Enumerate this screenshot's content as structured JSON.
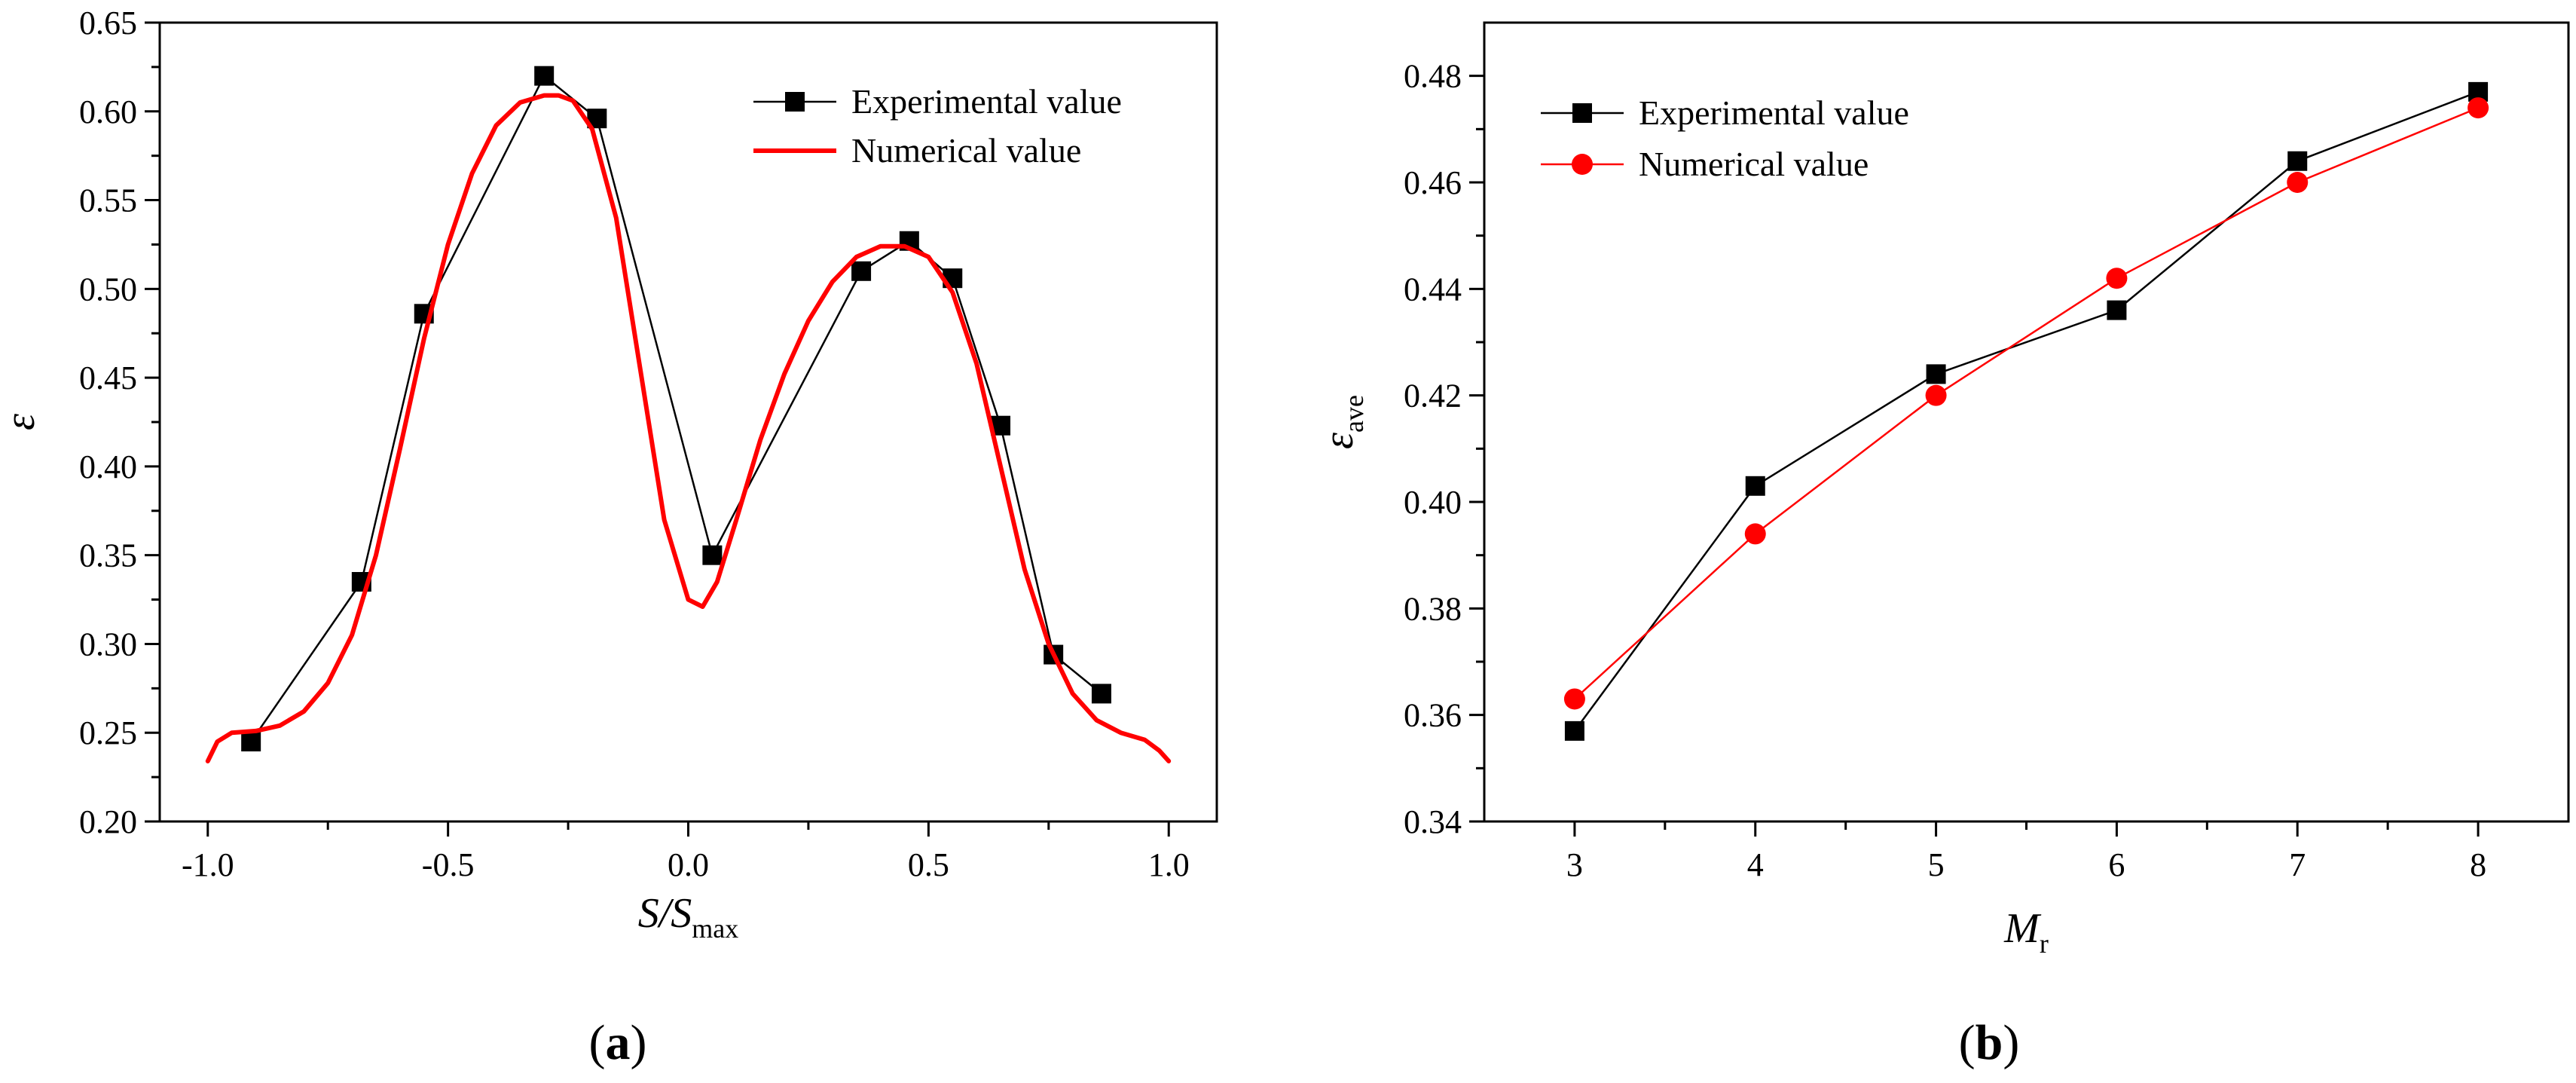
{
  "chart_data": [
    {
      "type": "line",
      "panel_label": "a",
      "xlabel": "S/S",
      "xlabel_sub": "max",
      "ylabel": "ε",
      "xlim": [
        -1.1,
        1.1
      ],
      "ylim": [
        0.2,
        0.65
      ],
      "xticks": [
        -1.0,
        -0.5,
        0.0,
        0.5,
        1.0
      ],
      "xtick_labels": [
        "-1.0",
        "-0.5",
        "0.0",
        "0.5",
        "1.0"
      ],
      "yticks": [
        0.2,
        0.25,
        0.3,
        0.35,
        0.4,
        0.45,
        0.5,
        0.55,
        0.6,
        0.65
      ],
      "ytick_labels": [
        "0.20",
        "0.25",
        "0.30",
        "0.35",
        "0.40",
        "0.45",
        "0.50",
        "0.55",
        "0.60",
        "0.65"
      ],
      "legend_position": "top-right",
      "series": [
        {
          "name": "Experimental value",
          "color": "#000000",
          "marker": "square",
          "x": [
            -0.91,
            -0.68,
            -0.55,
            -0.3,
            -0.19,
            0.05,
            0.36,
            0.46,
            0.55,
            0.65,
            0.76,
            0.86
          ],
          "y": [
            0.245,
            0.335,
            0.486,
            0.62,
            0.596,
            0.35,
            0.51,
            0.527,
            0.506,
            0.423,
            0.294,
            0.272
          ]
        },
        {
          "name": "Numerical value",
          "color": "#ff0000",
          "marker": "none",
          "x": [
            -1.0,
            -0.98,
            -0.95,
            -0.9,
            -0.85,
            -0.8,
            -0.75,
            -0.7,
            -0.65,
            -0.6,
            -0.55,
            -0.5,
            -0.45,
            -0.4,
            -0.35,
            -0.3,
            -0.27,
            -0.24,
            -0.2,
            -0.15,
            -0.1,
            -0.05,
            0.0,
            0.03,
            0.06,
            0.1,
            0.15,
            0.2,
            0.25,
            0.3,
            0.35,
            0.4,
            0.45,
            0.5,
            0.55,
            0.6,
            0.65,
            0.7,
            0.75,
            0.8,
            0.85,
            0.9,
            0.95,
            0.98,
            1.0
          ],
          "y": [
            0.234,
            0.245,
            0.25,
            0.251,
            0.254,
            0.262,
            0.278,
            0.305,
            0.35,
            0.41,
            0.472,
            0.525,
            0.565,
            0.592,
            0.605,
            0.609,
            0.609,
            0.606,
            0.59,
            0.54,
            0.455,
            0.37,
            0.325,
            0.321,
            0.335,
            0.37,
            0.415,
            0.452,
            0.482,
            0.504,
            0.518,
            0.524,
            0.524,
            0.518,
            0.498,
            0.458,
            0.4,
            0.342,
            0.3,
            0.272,
            0.257,
            0.25,
            0.246,
            0.24,
            0.234
          ]
        }
      ]
    },
    {
      "type": "line",
      "panel_label": "b",
      "xlabel": "M",
      "xlabel_sub": "r",
      "ylabel": "ε",
      "ylabel_sub": "ave",
      "xlim": [
        2.5,
        8.5
      ],
      "ylim": [
        0.34,
        0.49
      ],
      "xticks": [
        3,
        4,
        5,
        6,
        7,
        8
      ],
      "xtick_labels": [
        "3",
        "4",
        "5",
        "6",
        "7",
        "8"
      ],
      "yticks": [
        0.34,
        0.36,
        0.38,
        0.4,
        0.42,
        0.44,
        0.46,
        0.48
      ],
      "ytick_labels": [
        "0.34",
        "0.36",
        "0.38",
        "0.40",
        "0.42",
        "0.44",
        "0.46",
        "0.48"
      ],
      "legend_position": "top-left",
      "series": [
        {
          "name": "Experimental value",
          "color": "#000000",
          "marker": "square",
          "x": [
            3,
            4,
            5,
            6,
            7,
            8
          ],
          "y": [
            0.357,
            0.403,
            0.424,
            0.436,
            0.464,
            0.477
          ]
        },
        {
          "name": "Numerical value",
          "color": "#ff0000",
          "marker": "circle",
          "x": [
            3,
            4,
            5,
            6,
            7,
            8
          ],
          "y": [
            0.363,
            0.394,
            0.42,
            0.442,
            0.46,
            0.474
          ]
        }
      ]
    }
  ]
}
